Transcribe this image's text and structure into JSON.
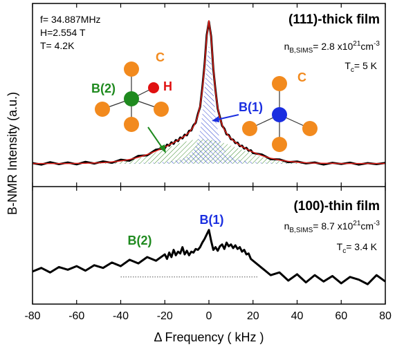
{
  "chart_data": [
    {
      "type": "line",
      "ylabel": "B-NMR Intensity (a.u.)",
      "conditions": [
        "f= 34.887MHz",
        "H=2.554 T",
        "T= 4.2K"
      ],
      "sample": "(111)-thick film",
      "density": {
        "symbol": "n",
        "subscript": "B,SIMS",
        "text": "= 2.8 x10",
        "exponent": "21",
        "unit": "cm",
        "unit_exponent": "-3"
      },
      "tc": {
        "symbol": "T",
        "subscript": "c",
        "text": "= 5 K"
      },
      "labels": {
        "b2": "B(2)",
        "b1": "B(1)",
        "h": "H",
        "c_left": "C",
        "c_right": "C"
      },
      "xlim": [
        -80,
        80
      ],
      "ylim": [
        -0.15,
        1.05
      ],
      "x": [
        -80,
        -76,
        -72,
        -68,
        -64,
        -60,
        -56,
        -52,
        -48,
        -44,
        -40,
        -36,
        -32,
        -28,
        -24,
        -20,
        -19,
        -18,
        -17,
        -16,
        -15,
        -14,
        -13,
        -12,
        -11,
        -10,
        -9,
        -8,
        -7,
        -6,
        -5,
        -4,
        -3,
        -2,
        -1,
        0,
        1,
        2,
        3,
        4,
        5,
        6,
        7,
        8,
        9,
        10,
        11,
        12,
        13,
        14,
        15,
        16,
        17,
        18,
        19,
        20,
        24,
        28,
        32,
        36,
        40,
        44,
        48,
        52,
        56,
        60,
        64,
        68,
        72,
        76,
        80
      ],
      "series": [
        {
          "color": "#3a8a2a",
          "hatched": true,
          "values": [
            0.0,
            0.0,
            0.0,
            0.0,
            0.0,
            0.001,
            0.001,
            0.003,
            0.005,
            0.009,
            0.015,
            0.024,
            0.037,
            0.054,
            0.075,
            0.097,
            0.103,
            0.108,
            0.114,
            0.119,
            0.125,
            0.13,
            0.135,
            0.139,
            0.143,
            0.147,
            0.15,
            0.153,
            0.156,
            0.158,
            0.159,
            0.16,
            0.16,
            0.16,
            0.159,
            0.158,
            0.156,
            0.153,
            0.15,
            0.147,
            0.143,
            0.139,
            0.135,
            0.13,
            0.125,
            0.119,
            0.114,
            0.108,
            0.103,
            0.097,
            0.091,
            0.086,
            0.08,
            0.075,
            0.069,
            0.064,
            0.045,
            0.03,
            0.019,
            0.012,
            0.007,
            0.003,
            0.002,
            0.001,
            0.0,
            0.0,
            0.0,
            0.0,
            0.0,
            0.0,
            0.0
          ]
        },
        {
          "color": "#2a3fd0",
          "hatched": true,
          "values": [
            0.001,
            0.001,
            0.001,
            0.001,
            0.001,
            0.001,
            0.002,
            0.002,
            0.002,
            0.003,
            0.003,
            0.004,
            0.005,
            0.006,
            0.008,
            0.012,
            0.013,
            0.015,
            0.017,
            0.019,
            0.021,
            0.024,
            0.028,
            0.033,
            0.038,
            0.046,
            0.056,
            0.069,
            0.088,
            0.115,
            0.156,
            0.219,
            0.32,
            0.476,
            0.672,
            0.78,
            0.672,
            0.476,
            0.32,
            0.219,
            0.156,
            0.115,
            0.088,
            0.069,
            0.056,
            0.046,
            0.038,
            0.033,
            0.028,
            0.024,
            0.021,
            0.019,
            0.017,
            0.015,
            0.013,
            0.012,
            0.008,
            0.006,
            0.005,
            0.004,
            0.003,
            0.003,
            0.002,
            0.002,
            0.002,
            0.001,
            0.001,
            0.001,
            0.001,
            0.001,
            0.001
          ]
        },
        {
          "color": "#000000",
          "width": 3,
          "values": [
            0.004,
            -0.006,
            0.01,
            -0.003,
            0.008,
            -0.004,
            0.012,
            0.001,
            0.015,
            0.006,
            0.026,
            0.02,
            0.051,
            0.055,
            0.092,
            0.101,
            0.125,
            0.118,
            0.14,
            0.13,
            0.155,
            0.148,
            0.172,
            0.166,
            0.19,
            0.186,
            0.215,
            0.218,
            0.252,
            0.268,
            0.325,
            0.372,
            0.495,
            0.645,
            0.842,
            0.93,
            0.835,
            0.62,
            0.478,
            0.36,
            0.305,
            0.248,
            0.23,
            0.192,
            0.188,
            0.16,
            0.158,
            0.135,
            0.138,
            0.115,
            0.118,
            0.099,
            0.104,
            0.085,
            0.088,
            0.07,
            0.06,
            0.03,
            0.028,
            0.01,
            0.014,
            0.002,
            0.008,
            -0.005,
            0.006,
            -0.002,
            0.007,
            -0.006,
            0.004,
            -0.003,
            0.005
          ]
        },
        {
          "color": "#e0201a",
          "width": 1.5,
          "values": [
            0.001,
            0.001,
            0.001,
            0.001,
            0.001,
            0.002,
            0.003,
            0.005,
            0.007,
            0.012,
            0.018,
            0.028,
            0.042,
            0.06,
            0.083,
            0.109,
            0.116,
            0.123,
            0.131,
            0.138,
            0.146,
            0.154,
            0.163,
            0.172,
            0.181,
            0.193,
            0.206,
            0.222,
            0.244,
            0.273,
            0.315,
            0.379,
            0.48,
            0.636,
            0.831,
            0.938,
            0.828,
            0.629,
            0.47,
            0.366,
            0.299,
            0.254,
            0.223,
            0.199,
            0.181,
            0.165,
            0.152,
            0.141,
            0.131,
            0.121,
            0.112,
            0.105,
            0.097,
            0.09,
            0.082,
            0.076,
            0.053,
            0.036,
            0.024,
            0.016,
            0.01,
            0.006,
            0.004,
            0.003,
            0.002,
            0.001,
            0.001,
            0.001,
            0.001,
            0.001,
            0.001
          ]
        }
      ]
    },
    {
      "type": "line",
      "xlabel": "Δ Frequency ( kHz )",
      "sample": "(100)-thin film",
      "density": {
        "symbol": "n",
        "subscript": "B,SIMS",
        "text": "= 8.7 x10",
        "exponent": "21",
        "unit": "cm",
        "unit_exponent": "-3"
      },
      "tc": {
        "symbol": "T",
        "subscript": "c",
        "text": "= 3.4 K"
      },
      "labels": {
        "b1": "B(1)",
        "b2": "B(2)"
      },
      "baseline": {
        "value": 0,
        "xlim": [
          -40,
          22
        ]
      },
      "xlim": [
        -80,
        80
      ],
      "ylim": [
        -0.3,
        1.0
      ],
      "xticks": [
        -80,
        -60,
        -40,
        -20,
        0,
        20,
        40,
        60,
        80
      ],
      "x": [
        -80,
        -76,
        -72,
        -68,
        -64,
        -60,
        -56,
        -52,
        -48,
        -44,
        -40,
        -36,
        -32,
        -28,
        -24,
        -20,
        -19,
        -18,
        -17,
        -16,
        -15,
        -14,
        -13,
        -12,
        -11,
        -10,
        -9,
        -8,
        -7,
        -6,
        -5,
        -4,
        -3,
        -2,
        -1,
        0,
        1,
        2,
        3,
        4,
        5,
        6,
        7,
        8,
        9,
        10,
        11,
        12,
        13,
        14,
        15,
        16,
        17,
        18,
        19,
        20,
        24,
        28,
        32,
        36,
        40,
        44,
        48,
        52,
        56,
        60,
        64,
        68,
        72,
        76,
        80
      ],
      "series": [
        {
          "color": "#000000",
          "width": 3,
          "values": [
            0.06,
            0.1,
            0.05,
            0.11,
            0.08,
            0.12,
            0.07,
            0.13,
            0.1,
            0.16,
            0.12,
            0.19,
            0.15,
            0.22,
            0.18,
            0.25,
            0.2,
            0.27,
            0.22,
            0.3,
            0.24,
            0.28,
            0.26,
            0.33,
            0.25,
            0.29,
            0.24,
            0.28,
            0.27,
            0.31,
            0.3,
            0.33,
            0.38,
            0.42,
            0.47,
            0.52,
            0.4,
            0.3,
            0.33,
            0.29,
            0.34,
            0.36,
            0.31,
            0.38,
            0.34,
            0.36,
            0.32,
            0.35,
            0.31,
            0.33,
            0.28,
            0.3,
            0.25,
            0.26,
            0.2,
            0.18,
            0.1,
            0.02,
            0.05,
            -0.04,
            0.03,
            -0.06,
            0.02,
            -0.05,
            0.01,
            -0.07,
            0.0,
            -0.03,
            -0.08,
            0.02,
            -0.05
          ]
        }
      ]
    }
  ]
}
